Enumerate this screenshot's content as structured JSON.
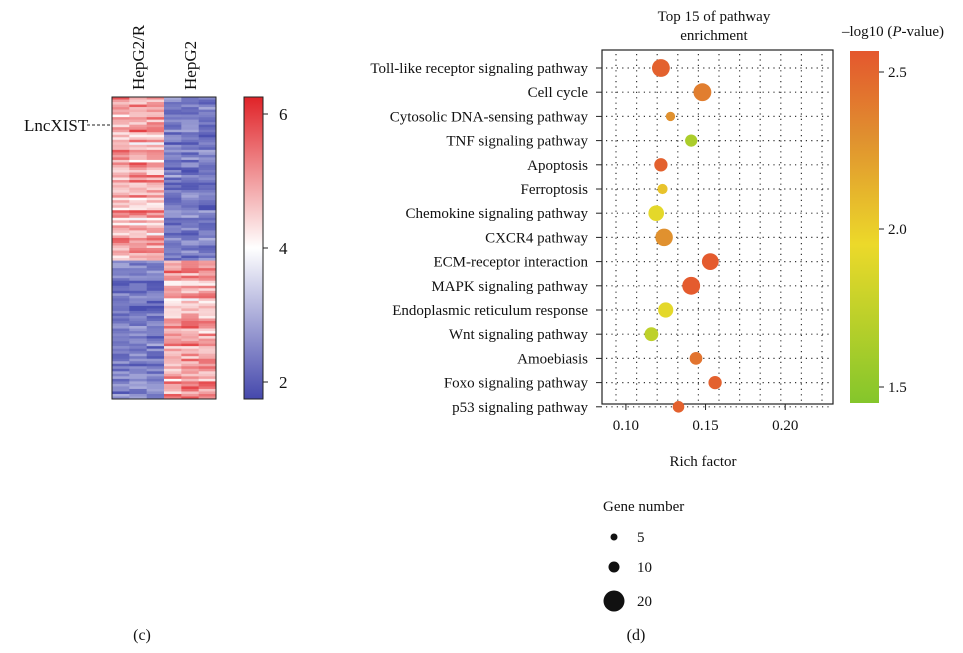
{
  "panel_c": {
    "label": "(c)",
    "column_labels": [
      "HepG2/R",
      "HepG2"
    ],
    "row_annotation": "LncXIST",
    "colorbar_ticks": [
      "6",
      "4",
      "2"
    ]
  },
  "panel_d": {
    "label": "(d)",
    "title_line1": "Top 15 of pathway",
    "title_line2": "enrichment",
    "colorbar_title_prefix": "–log10 (",
    "colorbar_title_italic": "P",
    "colorbar_title_suffix": "-value)",
    "colorbar_ticks": [
      "2.5",
      "2.0",
      "1.5"
    ],
    "size_legend_title": "Gene number",
    "size_legend_items": [
      "5",
      "10",
      "20"
    ]
  },
  "chart_data": [
    {
      "type": "heatmap",
      "title": "",
      "columns": [
        "HepG2/R",
        "HepG2"
      ],
      "row_label": "LncXIST",
      "color_range": [
        1.7,
        6.3
      ],
      "colorbar_ticks": [
        6,
        4,
        2
      ],
      "colors": {
        "high": "#e0262a",
        "mid": "#ffffff",
        "low": "#4a4fb0"
      }
    },
    {
      "type": "scatter",
      "title": "Top 15 of pathway enrichment",
      "xlabel": "Rich factor",
      "ylabel": "",
      "xlim": [
        0.085,
        0.23
      ],
      "xticks": [
        0.1,
        0.15,
        0.2
      ],
      "xtick_labels": [
        "0.10",
        "0.15",
        "0.20"
      ],
      "color_label": "–log10 (P-value)",
      "color_range": [
        1.4,
        2.6
      ],
      "size_label": "Gene number",
      "grid": true,
      "categories": [
        "Toll-like receptor signaling pathway",
        "Cell cycle",
        "Cytosolic DNA-sensing pathway",
        "TNF signaling pathway",
        "Apoptosis",
        "Ferroptosis",
        "Chemokine signaling pathway",
        "CXCR4 pathway",
        "ECM-receptor interaction",
        "MAPK signaling pathway",
        "Endoplasmic reticulum response",
        "Wnt signaling pathway",
        "Amoebiasis",
        "Foxo signaling pathway",
        "p53 signaling pathway"
      ],
      "points": [
        {
          "pathway": "Toll-like receptor signaling pathway",
          "rich_factor": 0.122,
          "neg_log10_p": 2.55,
          "gene_number": 20
        },
        {
          "pathway": "Cell cycle",
          "rich_factor": 0.148,
          "neg_log10_p": 2.4,
          "gene_number": 20
        },
        {
          "pathway": "Cytosolic DNA-sensing pathway",
          "rich_factor": 0.128,
          "neg_log10_p": 2.3,
          "gene_number": 3
        },
        {
          "pathway": "TNF signaling pathway",
          "rich_factor": 0.141,
          "neg_log10_p": 1.6,
          "gene_number": 7
        },
        {
          "pathway": "Apoptosis",
          "rich_factor": 0.122,
          "neg_log10_p": 2.55,
          "gene_number": 9
        },
        {
          "pathway": "Ferroptosis",
          "rich_factor": 0.123,
          "neg_log10_p": 2.05,
          "gene_number": 4
        },
        {
          "pathway": "Chemokine signaling pathway",
          "rich_factor": 0.119,
          "neg_log10_p": 1.9,
          "gene_number": 14
        },
        {
          "pathway": "CXCR4 pathway",
          "rich_factor": 0.124,
          "neg_log10_p": 2.3,
          "gene_number": 19
        },
        {
          "pathway": "ECM-receptor interaction",
          "rich_factor": 0.153,
          "neg_log10_p": 2.58,
          "gene_number": 17
        },
        {
          "pathway": "MAPK signaling pathway",
          "rich_factor": 0.141,
          "neg_log10_p": 2.58,
          "gene_number": 20
        },
        {
          "pathway": "Endoplasmic reticulum response",
          "rich_factor": 0.125,
          "neg_log10_p": 1.9,
          "gene_number": 13
        },
        {
          "pathway": "Wnt signaling pathway",
          "rich_factor": 0.116,
          "neg_log10_p": 1.7,
          "gene_number": 10
        },
        {
          "pathway": "Amoebiasis",
          "rich_factor": 0.144,
          "neg_log10_p": 2.45,
          "gene_number": 8
        },
        {
          "pathway": "Foxo signaling pathway",
          "rich_factor": 0.156,
          "neg_log10_p": 2.55,
          "gene_number": 9
        },
        {
          "pathway": "p53 signaling pathway",
          "rich_factor": 0.133,
          "neg_log10_p": 2.55,
          "gene_number": 6
        }
      ]
    }
  ]
}
